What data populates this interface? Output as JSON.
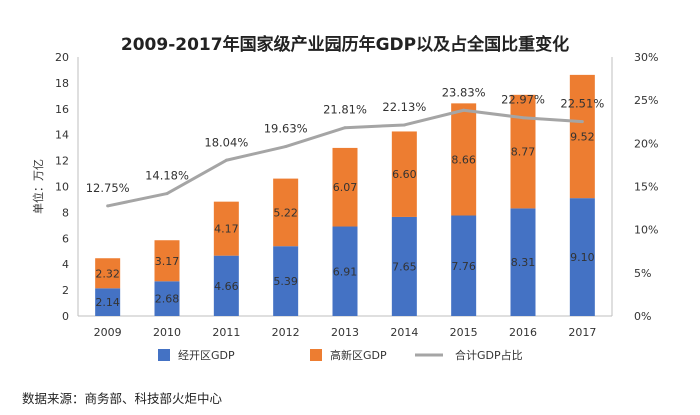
{
  "chart_data": {
    "type": "bar",
    "title": "2009-2017年国家级产业园历年GDP以及占全国比重变化",
    "ylabel": "单位：万亿",
    "ylim": [
      0,
      20
    ],
    "y_ticks": [
      "0",
      "2",
      "4",
      "6",
      "8",
      "10",
      "12",
      "14",
      "16",
      "18",
      "20"
    ],
    "y2lim": [
      0,
      30
    ],
    "y2_ticks": [
      "0%",
      "5%",
      "10%",
      "15%",
      "20%",
      "25%",
      "30%"
    ],
    "categories": [
      "2009",
      "2010",
      "2011",
      "2012",
      "2013",
      "2014",
      "2015",
      "2016",
      "2017"
    ],
    "stacked": true,
    "grid": false,
    "legend_position": "bottom",
    "series": [
      {
        "name": "经开区GDP",
        "kind": "bar",
        "color": "#4472C4",
        "values": [
          2.14,
          2.68,
          4.66,
          5.39,
          6.91,
          7.65,
          7.76,
          8.31,
          9.1
        ],
        "labels": [
          "2.14",
          "2.68",
          "4.66",
          "5.39",
          "6.91",
          "7.65",
          "7.76",
          "8.31",
          "9.10"
        ]
      },
      {
        "name": "高新区GDP",
        "kind": "bar",
        "color": "#ED7D31",
        "values": [
          2.32,
          3.17,
          4.17,
          5.22,
          6.07,
          6.6,
          8.66,
          8.77,
          9.52
        ],
        "labels": [
          "2.32",
          "3.17",
          "4.17",
          "5.22",
          "6.07",
          "6.60",
          "8.66",
          "8.77",
          "9.52"
        ]
      },
      {
        "name": "合计GDP占比",
        "kind": "line",
        "axis": "right",
        "color": "#A5A5A5",
        "values": [
          12.75,
          14.18,
          18.04,
          19.63,
          21.81,
          22.13,
          23.83,
          22.97,
          22.51
        ],
        "labels": [
          "12.75%",
          "14.18%",
          "18.04%",
          "19.63%",
          "21.81%",
          "22.13%",
          "23.83%",
          "22.97%",
          "22.51%"
        ]
      }
    ]
  },
  "source_text": "数据来源：商务部、科技部火炬中心"
}
